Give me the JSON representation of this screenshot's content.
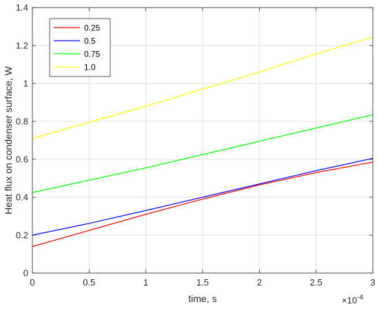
{
  "chart_data": {
    "type": "line",
    "title": "",
    "xlabel": "time, s",
    "ylabel": "Heat flux on condenser surface, W",
    "x_exponent_label": "×10",
    "x_exponent_power": "-4",
    "xlim": [
      0,
      3
    ],
    "ylim": [
      0,
      1.4
    ],
    "x_ticks": [
      "0",
      "0.5",
      "1",
      "1.5",
      "2",
      "2.5",
      "3"
    ],
    "y_ticks": [
      "0",
      "0.2",
      "0.4",
      "0.6",
      "0.8",
      "1",
      "1.2",
      "1.4"
    ],
    "grid": true,
    "legend_position": "top-left",
    "x": [
      0,
      0.5,
      1,
      1.5,
      2,
      2.5,
      3
    ],
    "series": [
      {
        "name": "0.25",
        "color": "#ff0000",
        "values": [
          0.14,
          0.225,
          0.31,
          0.39,
          0.465,
          0.53,
          0.585
        ]
      },
      {
        "name": "0.5",
        "color": "#0000ff",
        "values": [
          0.2,
          0.262,
          0.33,
          0.4,
          0.47,
          0.54,
          0.605
        ]
      },
      {
        "name": "0.75",
        "color": "#00ff00",
        "values": [
          0.425,
          0.49,
          0.555,
          0.625,
          0.695,
          0.765,
          0.835
        ]
      },
      {
        "name": "1.0",
        "color": "#ffff00",
        "values": [
          0.71,
          0.795,
          0.88,
          0.97,
          1.06,
          1.155,
          1.245
        ]
      }
    ]
  }
}
